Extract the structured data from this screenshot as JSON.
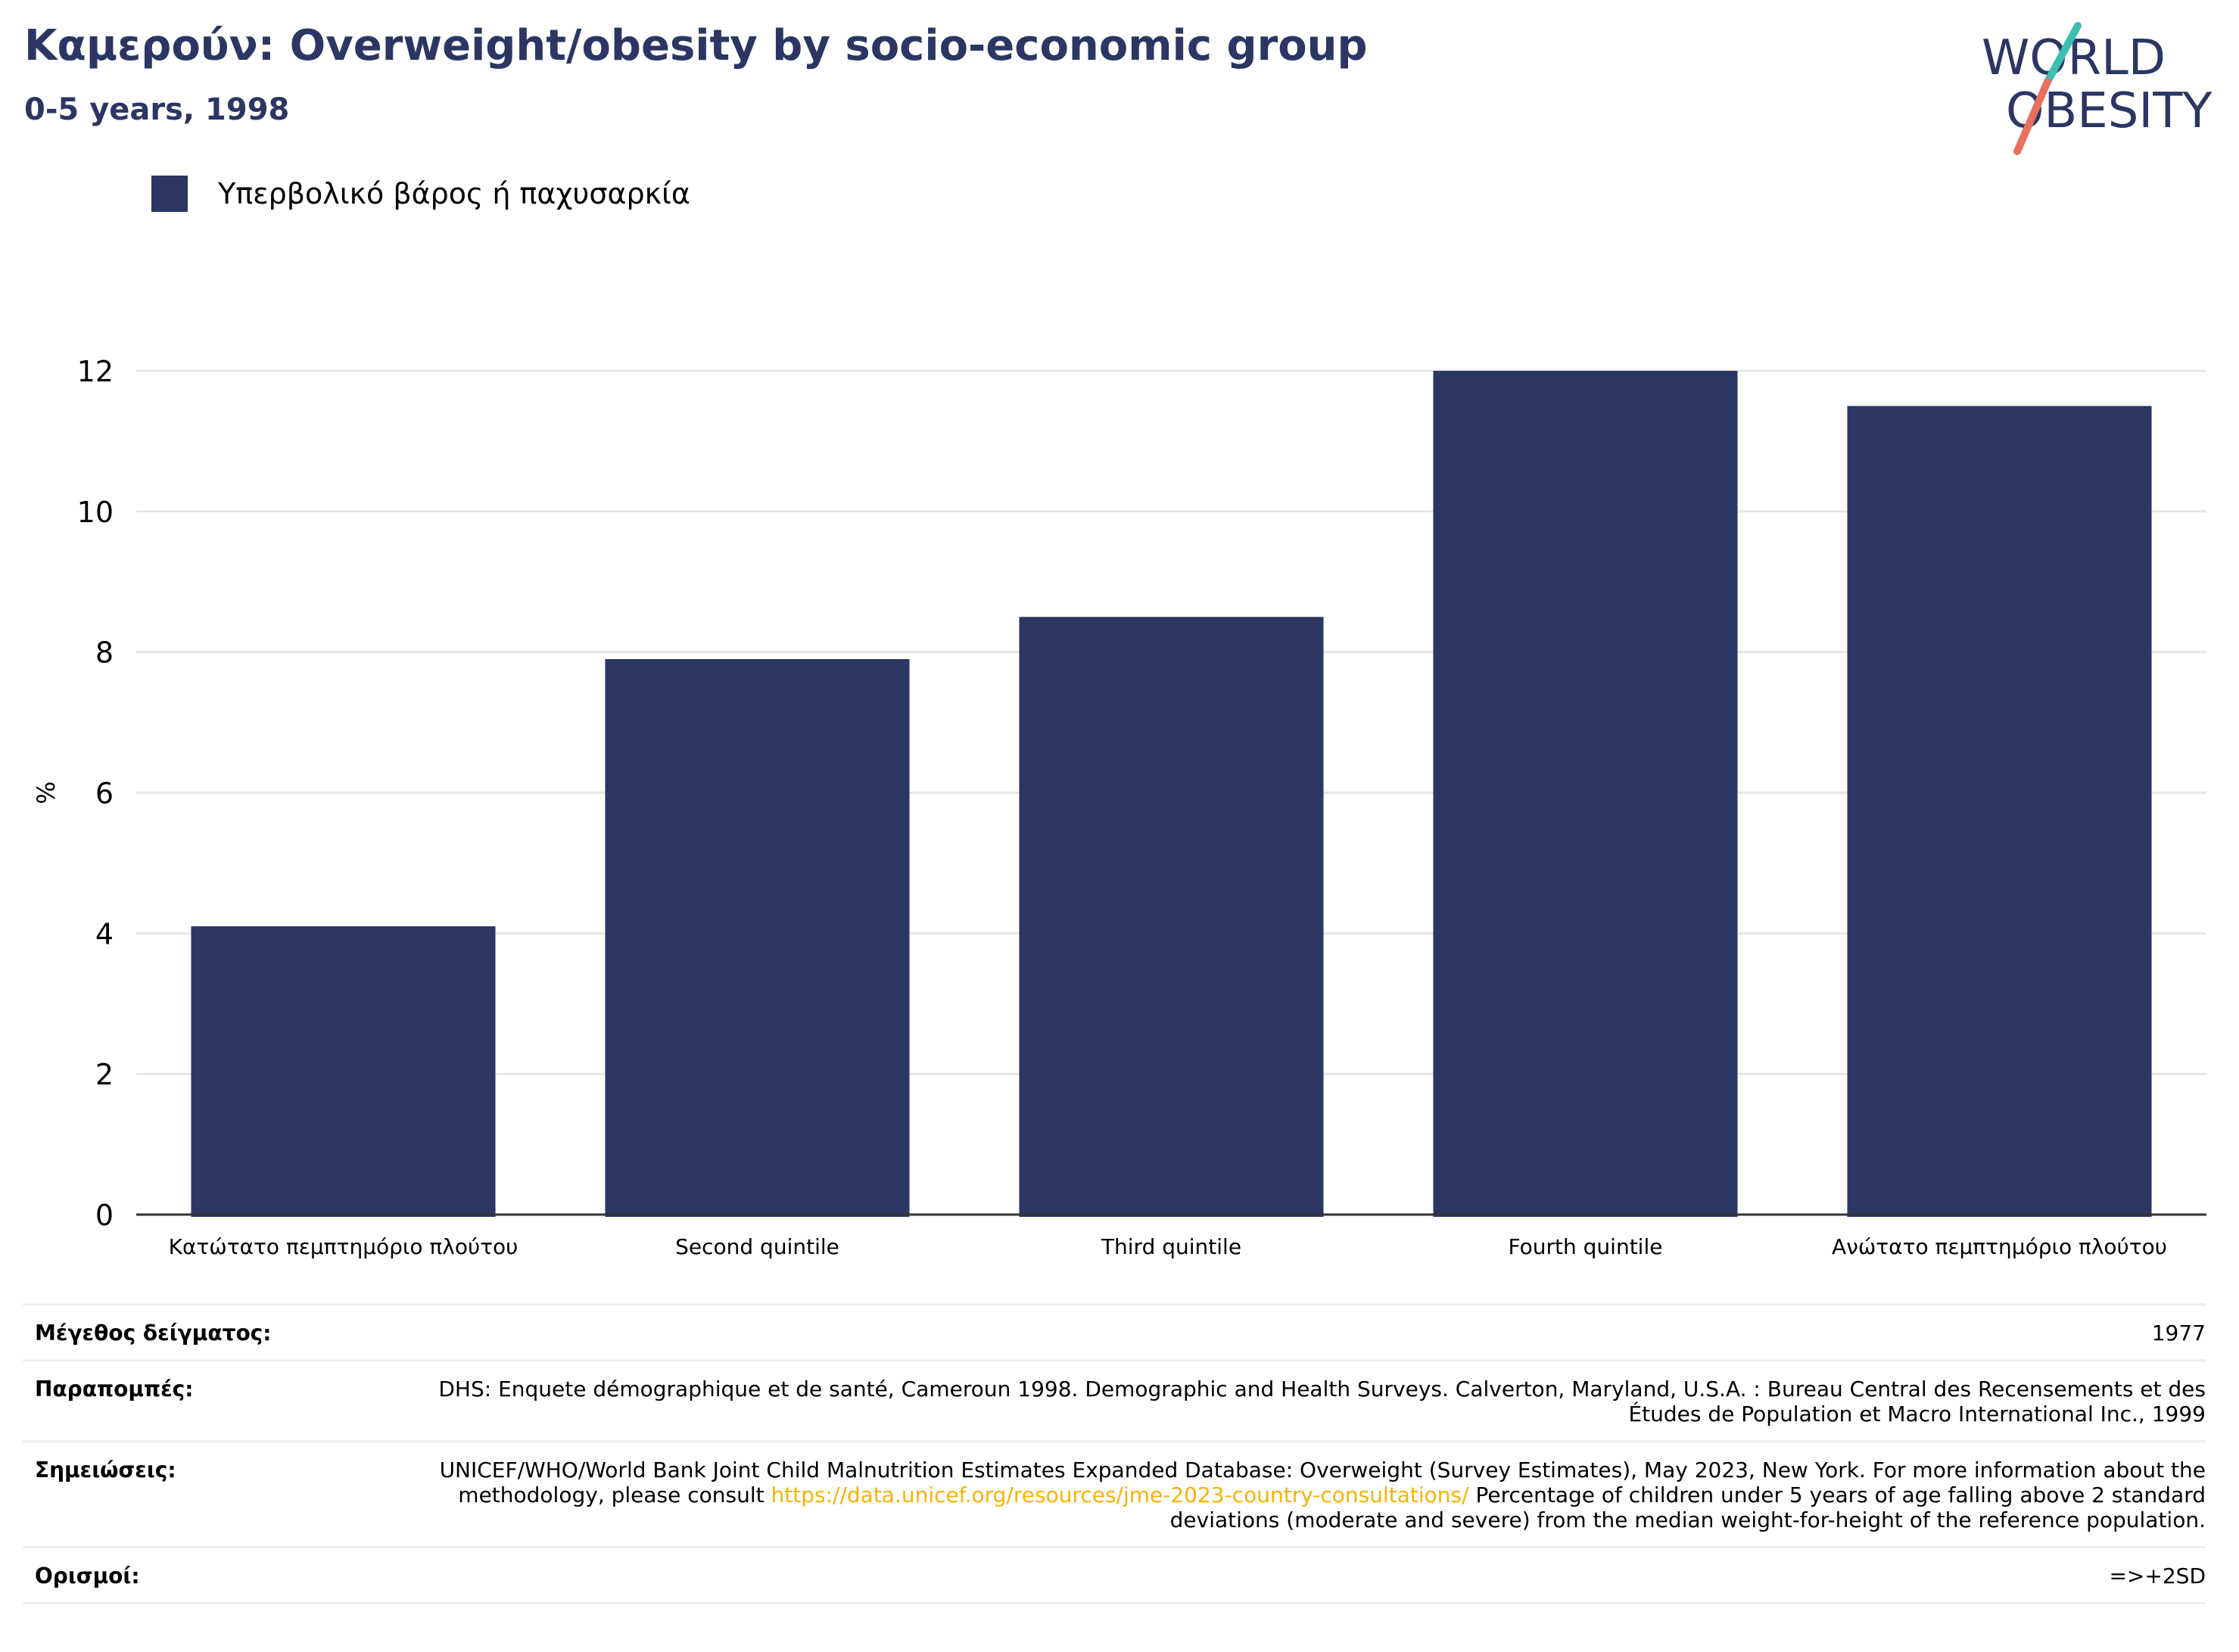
{
  "header": {
    "title": "Καμερούν: Overweight/obesity by socio-economic group",
    "subtitle": "0-5 years, 1998"
  },
  "logo": {
    "line1": "WORLD",
    "line2": "OBESITY"
  },
  "legend": {
    "label": "Υπερβολικό βάρος ή παχυσαρκία"
  },
  "chart_data": {
    "type": "bar",
    "categories": [
      "Κατώτατο πεμπτημόριο πλούτου",
      "Second quintile",
      "Third quintile",
      "Fourth quintile",
      "Ανώτατο πεμπτημόριο πλούτου"
    ],
    "series": [
      {
        "name": "Υπερβολικό βάρος ή παχυσαρκία",
        "values": [
          4.1,
          7.9,
          8.5,
          12.0,
          11.5
        ]
      }
    ],
    "ylabel": "%",
    "ylim": [
      0,
      12
    ],
    "yticks": [
      0,
      2,
      4,
      6,
      8,
      10,
      12
    ],
    "grid": true,
    "legend_position": "top-left",
    "bar_color": "#2b3663"
  },
  "footer": {
    "sample_size": {
      "label": "Μέγεθος δείγματος:",
      "value": "1977"
    },
    "references": {
      "label": "Παραπομπές:",
      "value": "DHS: Enquete démographique et de santé, Cameroun 1998. Demographic and Health Surveys. Calverton, Maryland, U.S.A. : Bureau Central des Recensements et des Études de Population et Macro International Inc., 1999"
    },
    "notes": {
      "label": "Σημειώσεις:",
      "text_before": "UNICEF/WHO/World Bank Joint Child Malnutrition Estimates Expanded Database: Overweight (Survey Estimates), May 2023, New York. For more information about the methodology, please consult ",
      "link": "https://data.unicef.org/resources/jme-2023-country-consultations/",
      "text_after": " Percentage of children under 5 years of age falling above 2 standard deviations (moderate and severe) from the median weight-for-height of the reference population."
    },
    "definitions": {
      "label": "Ορισμοί:",
      "value": "=>+2SD"
    }
  },
  "colors": {
    "brand_navy": "#2b3663",
    "accent_teal": "#3bbfb0",
    "accent_coral": "#e8705f",
    "link": "#f5b400"
  }
}
